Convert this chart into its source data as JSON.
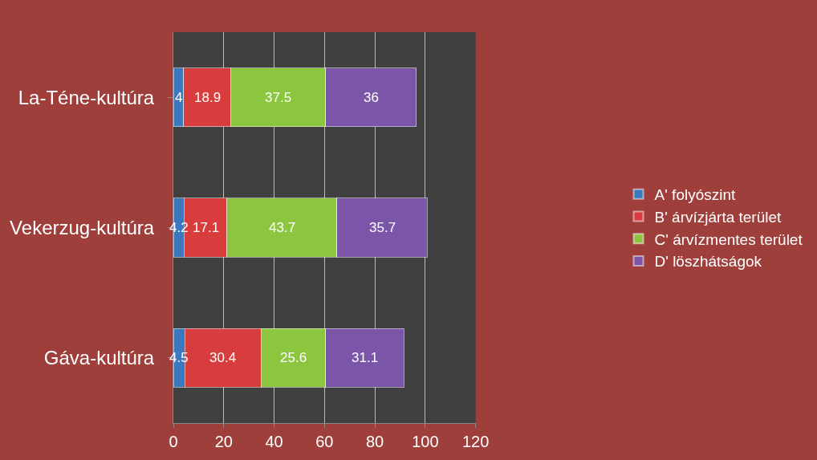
{
  "chart_data": {
    "type": "bar",
    "orientation": "horizontal",
    "stacked": true,
    "categories": [
      "La-Téne-kultúra",
      "Vekerzug-kultúra",
      "Gáva-kultúra"
    ],
    "series": [
      {
        "name": "A' folyószint",
        "color": "#3a78c0",
        "values": [
          4,
          4.2,
          4.5
        ]
      },
      {
        "name": "B' árvízjárta terület",
        "color": "#d83c3c",
        "values": [
          18.9,
          17.1,
          30.4
        ]
      },
      {
        "name": "C' árvízmentes terület",
        "color": "#8cc63e",
        "values": [
          37.5,
          43.7,
          25.6
        ]
      },
      {
        "name": "D' löszhátságok",
        "color": "#7a55a8",
        "values": [
          36,
          35.7,
          31.1
        ]
      }
    ],
    "xlim": [
      0,
      120
    ],
    "xticks": [
      0,
      20,
      40,
      60,
      80,
      100,
      120
    ],
    "grid": "x",
    "legend": "right",
    "data_labels": true
  }
}
